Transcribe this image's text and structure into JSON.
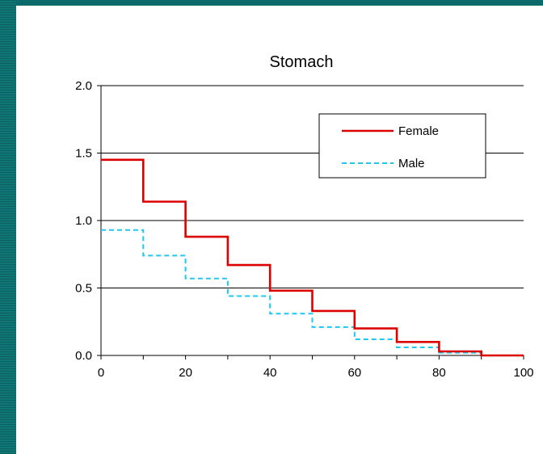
{
  "chart_data": {
    "type": "line",
    "step": true,
    "title": "Stomach",
    "xlabel": "",
    "ylabel": "",
    "xlim": [
      0,
      100
    ],
    "ylim": [
      0,
      2.0
    ],
    "xticks": [
      "0",
      "20",
      "40",
      "60",
      "80",
      "100"
    ],
    "yticks": [
      "0.0",
      "0.5",
      "1.0",
      "1.5",
      "2.0"
    ],
    "grid": "horizontal",
    "legend_position": "top-right",
    "x": [
      0,
      10,
      20,
      30,
      40,
      50,
      60,
      70,
      80,
      90,
      100
    ],
    "series": [
      {
        "name": "Female",
        "color": "#dd0000",
        "style": "solid",
        "values": [
          1.45,
          1.14,
          0.88,
          0.67,
          0.48,
          0.33,
          0.2,
          0.1,
          0.03,
          0.0,
          0.0
        ]
      },
      {
        "name": "Male",
        "color": "#1ec8f0",
        "style": "dashed",
        "values": [
          0.93,
          0.74,
          0.57,
          0.44,
          0.31,
          0.21,
          0.12,
          0.06,
          0.02,
          0.0,
          0.0
        ]
      }
    ]
  }
}
